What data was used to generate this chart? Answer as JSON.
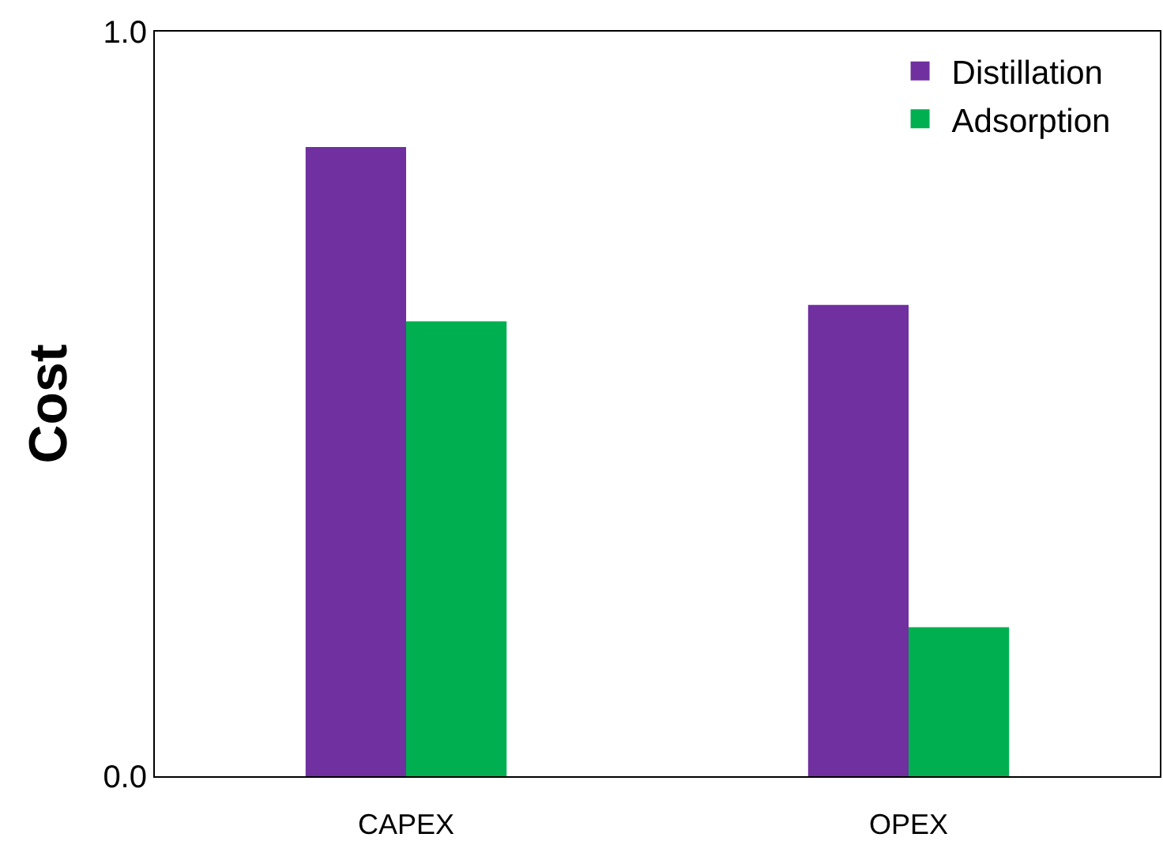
{
  "chart_data": {
    "type": "bar",
    "ylabel": "Cost",
    "categories": [
      "CAPEX",
      "OPEX"
    ],
    "series": [
      {
        "name": "Distillation",
        "color": "#7030a0",
        "values": [
          0.845,
          0.633
        ]
      },
      {
        "name": "Adsorption",
        "color": "#00b050",
        "values": [
          0.611,
          0.2
        ]
      }
    ],
    "ylim": [
      0,
      1
    ],
    "yticks": [
      {
        "value": 0,
        "label": "0.0"
      },
      {
        "value": 1,
        "label": "1.0"
      }
    ],
    "legend": "top right"
  }
}
